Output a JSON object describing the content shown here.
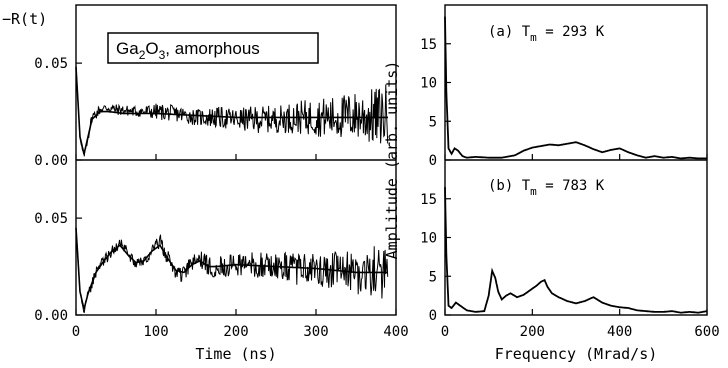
{
  "chart_data": [
    {
      "type": "line",
      "panel": "left",
      "ylabel": "−R(t)",
      "xlabel": "Time (ns)",
      "inset_label": "Ga₂O₃, amorphous",
      "inset_label_parts": [
        "Ga",
        "2",
        "O",
        "3",
        ", amorphous"
      ],
      "xlim": [
        0,
        400
      ],
      "x_ticks": [
        "0",
        "100",
        "200",
        "300",
        "400"
      ],
      "subplots": [
        {
          "position": "top",
          "ylim": [
            0,
            0.08
          ],
          "y_ticks": [
            "0.00",
            "0.05"
          ],
          "series": [
            {
              "style": "noisy-data",
              "x": [
                0,
                5,
                10,
                15,
                20,
                30,
                40,
                50,
                75,
                100,
                125,
                150,
                175,
                200,
                225,
                250,
                275,
                300,
                325,
                350,
                375,
                390
              ],
              "y": [
                0.05,
                0.01,
                0.002,
                0.012,
                0.022,
                0.026,
                0.027,
                0.026,
                0.025,
                0.025,
                0.024,
                0.022,
                0.022,
                0.021,
                0.021,
                0.021,
                0.022,
                0.022,
                0.022,
                0.023,
                0.022,
                0.024
              ],
              "noise": [
                0.001,
                0.001,
                0.001,
                0.002,
                0.002,
                0.002,
                0.002,
                0.002,
                0.002,
                0.003,
                0.003,
                0.003,
                0.004,
                0.004,
                0.005,
                0.005,
                0.006,
                0.007,
                0.008,
                0.009,
                0.011,
                0.012
              ]
            },
            {
              "style": "fit",
              "x": [
                0,
                5,
                10,
                15,
                20,
                30,
                40,
                60,
                100,
                150,
                200,
                250,
                300,
                350,
                390
              ],
              "y": [
                0.048,
                0.012,
                0.003,
                0.012,
                0.021,
                0.025,
                0.025,
                0.024,
                0.024,
                0.023,
                0.022,
                0.022,
                0.022,
                0.022,
                0.022
              ]
            }
          ]
        },
        {
          "position": "bottom",
          "ylim": [
            0,
            0.08
          ],
          "y_ticks": [
            "0.00",
            "0.05"
          ],
          "series": [
            {
              "style": "noisy-data",
              "x": [
                0,
                5,
                10,
                15,
                25,
                35,
                45,
                55,
                65,
                75,
                85,
                95,
                105,
                115,
                125,
                135,
                145,
                155,
                165,
                175,
                200,
                225,
                250,
                275,
                300,
                325,
                350,
                375,
                390
              ],
              "y": [
                0.045,
                0.012,
                0.002,
                0.01,
                0.022,
                0.028,
                0.033,
                0.037,
                0.032,
                0.026,
                0.028,
                0.033,
                0.038,
                0.029,
                0.022,
                0.021,
                0.027,
                0.029,
                0.025,
                0.025,
                0.026,
                0.026,
                0.025,
                0.024,
                0.023,
                0.023,
                0.022,
                0.022,
                0.022
              ],
              "noise": [
                0.001,
                0.001,
                0.001,
                0.002,
                0.002,
                0.002,
                0.002,
                0.002,
                0.002,
                0.002,
                0.002,
                0.002,
                0.003,
                0.003,
                0.003,
                0.003,
                0.003,
                0.003,
                0.004,
                0.004,
                0.004,
                0.005,
                0.005,
                0.006,
                0.006,
                0.007,
                0.008,
                0.01,
                0.011
              ]
            },
            {
              "style": "fit",
              "x": [
                0,
                5,
                10,
                15,
                25,
                35,
                45,
                55,
                65,
                75,
                85,
                95,
                105,
                115,
                125,
                135,
                145,
                155,
                165,
                175,
                200,
                250,
                300,
                350,
                390
              ],
              "y": [
                0.045,
                0.012,
                0.003,
                0.011,
                0.022,
                0.028,
                0.033,
                0.036,
                0.031,
                0.027,
                0.028,
                0.033,
                0.036,
                0.029,
                0.023,
                0.022,
                0.026,
                0.028,
                0.025,
                0.025,
                0.026,
                0.025,
                0.024,
                0.022,
                0.022
              ]
            }
          ]
        }
      ]
    },
    {
      "type": "line",
      "panel": "right",
      "ylabel": "Amplitude  (arb. units)",
      "xlabel": "Frequency (Mrad/s)",
      "xlim": [
        0,
        600
      ],
      "x_ticks": [
        "0",
        "200",
        "400",
        "600"
      ],
      "subplots": [
        {
          "position": "top",
          "label_prefix": "(a) T",
          "label_sub": "m",
          "label_suffix": " = 293 K",
          "ylim": [
            0,
            20
          ],
          "y_ticks": [
            "0",
            "5",
            "10",
            "15"
          ],
          "series": [
            {
              "style": "spectrum",
              "x": [
                0,
                3,
                8,
                15,
                22,
                30,
                40,
                50,
                70,
                100,
                130,
                160,
                180,
                200,
                220,
                240,
                260,
                280,
                300,
                320,
                340,
                360,
                380,
                400,
                420,
                440,
                460,
                480,
                500,
                520,
                540,
                560,
                580,
                600
              ],
              "y": [
                18.5,
                9,
                1.5,
                0.8,
                1.5,
                1.2,
                0.5,
                0.3,
                0.4,
                0.3,
                0.3,
                0.6,
                1.2,
                1.6,
                1.8,
                2.0,
                1.9,
                2.1,
                2.3,
                1.9,
                1.4,
                1.0,
                1.3,
                1.5,
                1.0,
                0.6,
                0.3,
                0.5,
                0.3,
                0.4,
                0.2,
                0.3,
                0.2,
                0.2
              ]
            }
          ]
        },
        {
          "position": "bottom",
          "label_prefix": "(b) T",
          "label_sub": "m",
          "label_suffix": " = 783 K",
          "ylim": [
            0,
            20
          ],
          "y_ticks": [
            "0",
            "5",
            "10",
            "15"
          ],
          "series": [
            {
              "style": "spectrum",
              "x": [
                0,
                3,
                8,
                15,
                25,
                35,
                50,
                70,
                90,
                100,
                108,
                115,
                122,
                130,
                140,
                150,
                165,
                180,
                195,
                210,
                220,
                228,
                235,
                245,
                260,
                280,
                300,
                320,
                340,
                360,
                380,
                400,
                420,
                440,
                460,
                480,
                500,
                520,
                540,
                560,
                580,
                600
              ],
              "y": [
                16.5,
                8,
                1.2,
                0.9,
                1.6,
                1.2,
                0.6,
                0.4,
                0.5,
                2.5,
                5.7,
                4.8,
                3.0,
                2.0,
                2.5,
                2.8,
                2.3,
                2.6,
                3.2,
                3.8,
                4.3,
                4.5,
                3.6,
                2.8,
                2.3,
                1.8,
                1.5,
                1.8,
                2.3,
                1.6,
                1.2,
                1.0,
                0.9,
                0.6,
                0.5,
                0.4,
                0.4,
                0.5,
                0.3,
                0.4,
                0.3,
                0.5
              ]
            }
          ]
        }
      ]
    }
  ]
}
